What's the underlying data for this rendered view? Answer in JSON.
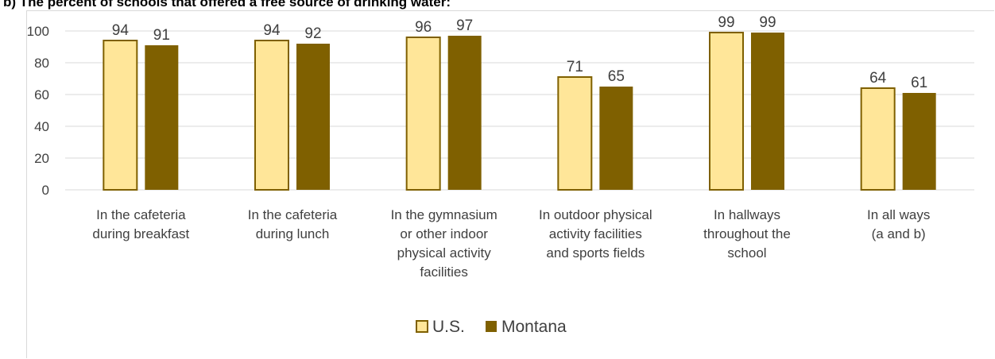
{
  "title": "b) The percent of schools that offered a free source of drinking water:",
  "chart_data": {
    "type": "bar",
    "categories": [
      [
        "In the cafeteria",
        "during breakfast"
      ],
      [
        "In the cafeteria",
        "during lunch"
      ],
      [
        "In the gymnasium",
        "or other indoor",
        "physical activity",
        "facilities"
      ],
      [
        "In outdoor physical",
        "activity facilities",
        "and sports fields"
      ],
      [
        "In hallways",
        "throughout the",
        "school"
      ],
      [
        "In all ways",
        "(a and b)"
      ]
    ],
    "series": [
      {
        "name": "U.S.",
        "values": [
          94,
          94,
          96,
          71,
          99,
          64
        ],
        "color": "#FFE699"
      },
      {
        "name": "Montana",
        "values": [
          91,
          92,
          97,
          65,
          99,
          61
        ],
        "color": "#7F6000"
      }
    ],
    "ylim": [
      0,
      100
    ],
    "yticks": [
      "0",
      "20",
      "40",
      "60",
      "80",
      "100"
    ],
    "grid": true,
    "legend_position": "bottom-center",
    "colors": {
      "us_outline": "#7F6000",
      "gridline": "#d9d9d9",
      "text": "#404040"
    }
  }
}
